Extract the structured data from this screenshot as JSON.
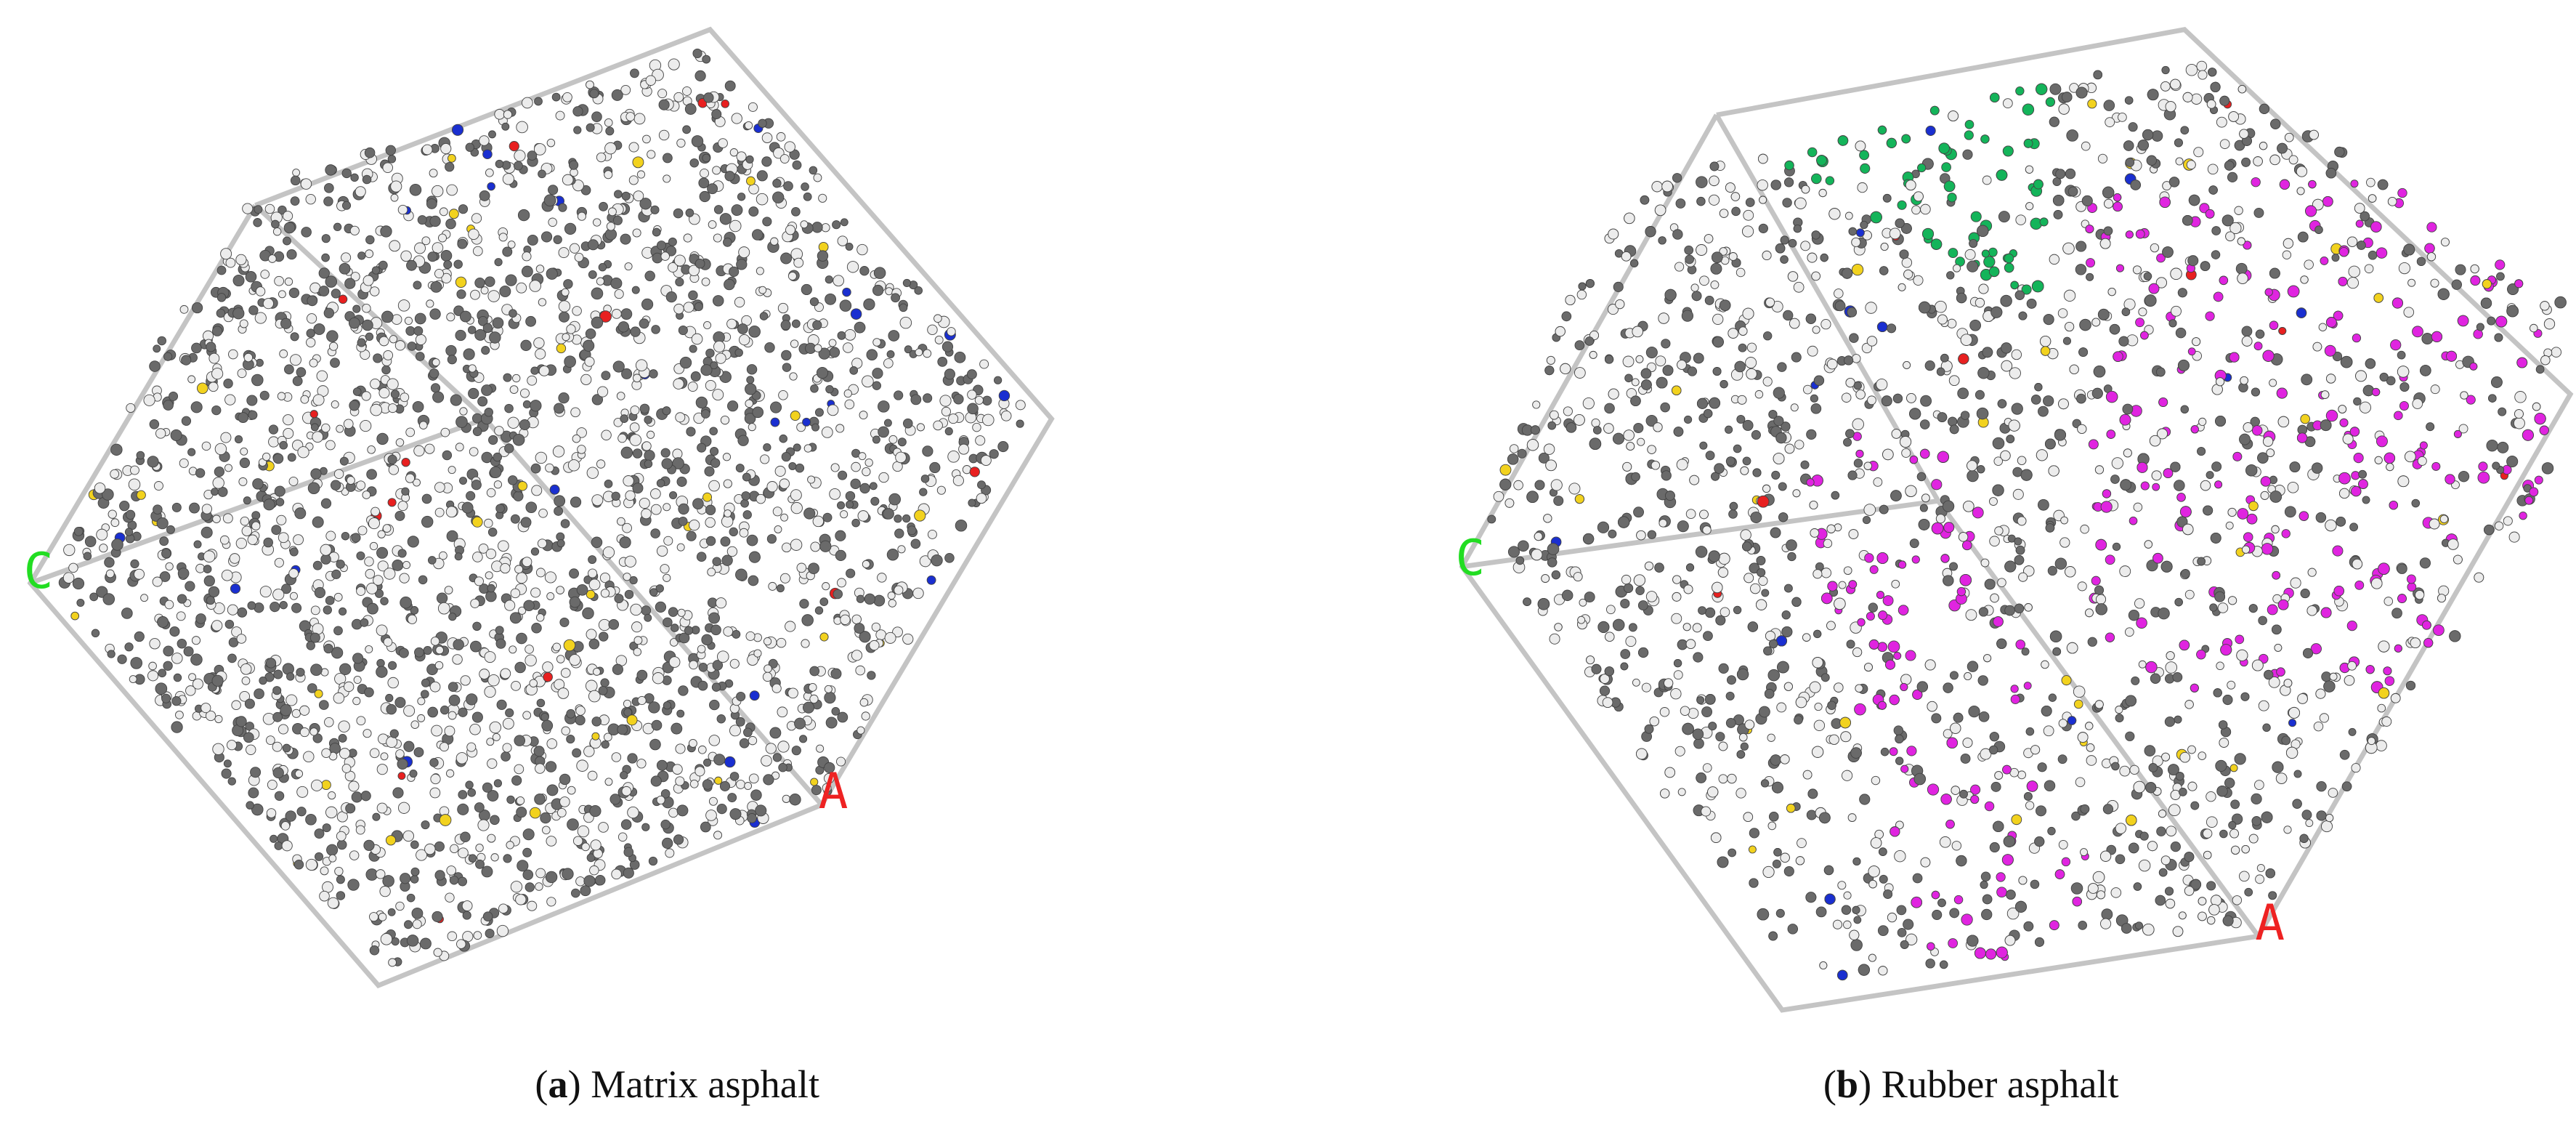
{
  "panels": [
    {
      "caption": {
        "open": "(",
        "label": "a",
        "rest": ") Matrix asphalt"
      },
      "axes": {
        "c": "C",
        "a": "A"
      }
    },
    {
      "caption": {
        "open": "(",
        "label": "b",
        "rest": ") Rubber asphalt"
      },
      "axes": {
        "c": "C",
        "a": "A"
      }
    }
  ]
}
